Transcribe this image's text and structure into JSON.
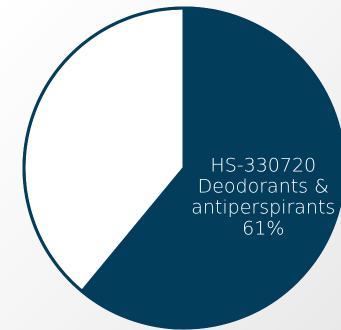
{
  "chart_data": {
    "type": "pie",
    "slices": [
      {
        "label_lines": [
          "HS-330720",
          "Deodorants &",
          "antiperspirants"
        ],
        "value_label": "61%",
        "value": 61,
        "color": "#023d5c"
      },
      {
        "label_lines": [],
        "value_label": "",
        "value": 39,
        "color": "#ffffff"
      }
    ],
    "start_angle_deg": 0,
    "direction": "clockwise",
    "border_color": "#023d5c",
    "legend": "none"
  }
}
